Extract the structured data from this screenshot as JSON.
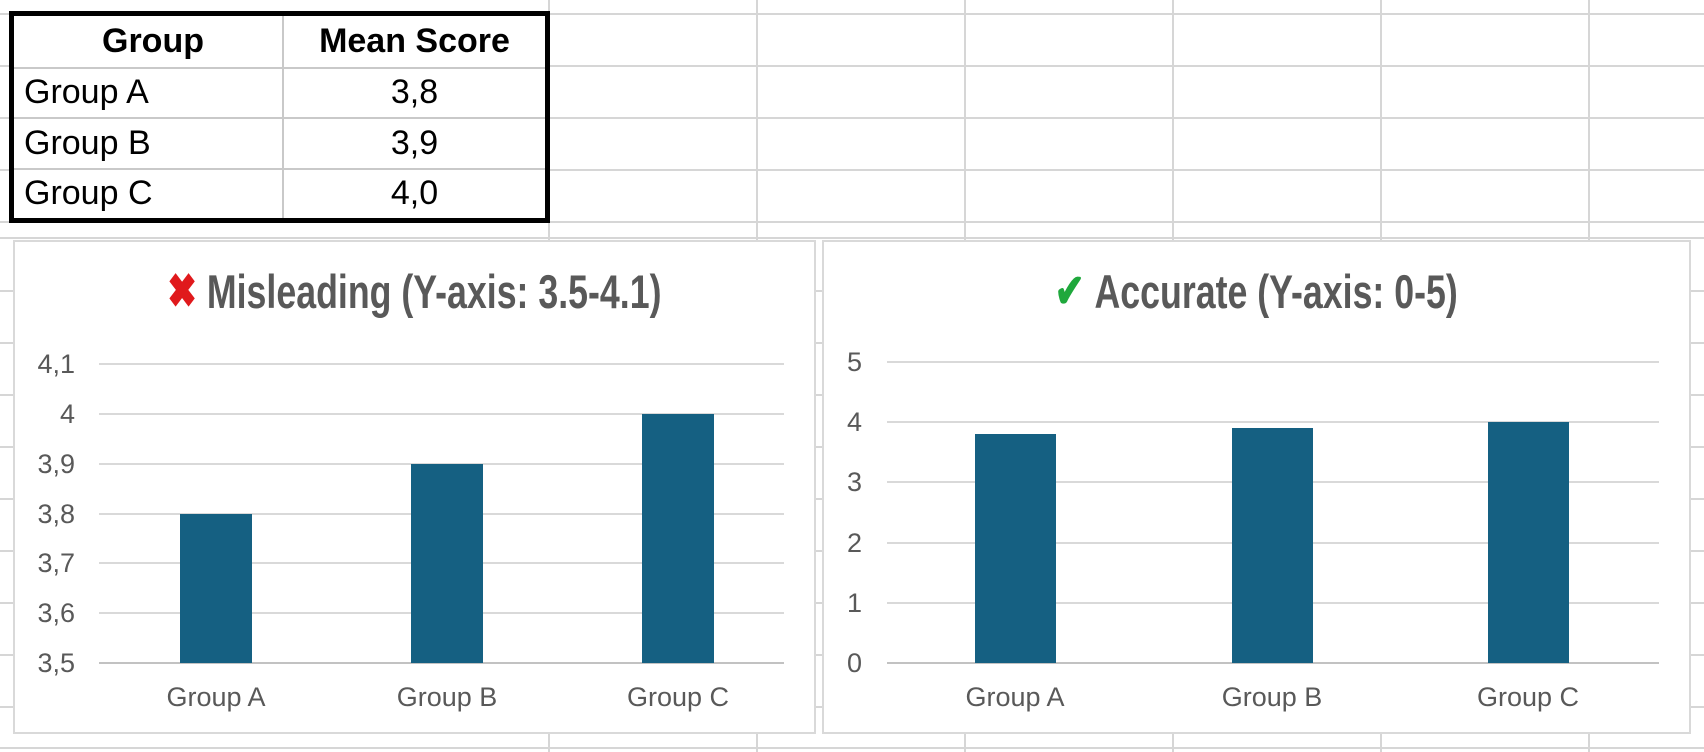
{
  "table": {
    "headers": [
      "Group",
      "Mean Score"
    ],
    "rows": [
      [
        "Group A",
        "3,8"
      ],
      [
        "Group B",
        "3,9"
      ],
      [
        "Group C",
        "4,0"
      ]
    ]
  },
  "chart_data": [
    {
      "type": "bar",
      "title": "Misleading (Y-axis: 3.5-4.1)",
      "title_icon": "✖",
      "icon_color": "#e0191c",
      "bar_color": "#156082",
      "categories": [
        "Group A",
        "Group B",
        "Group C"
      ],
      "values": [
        3.8,
        3.9,
        4.0
      ],
      "ylim": [
        3.5,
        4.1
      ],
      "yticks": [
        3.5,
        3.6,
        3.7,
        3.8,
        3.9,
        4.0,
        4.1
      ],
      "ytick_labels": [
        "3,5",
        "3,6",
        "3,7",
        "3,8",
        "3,9",
        "4",
        "4,1"
      ],
      "xlabel": "",
      "ylabel": "",
      "grid": true,
      "legend": "none"
    },
    {
      "type": "bar",
      "title": "Accurate (Y-axis: 0-5)",
      "title_icon": "✔",
      "icon_color": "#1fa83c",
      "bar_color": "#156082",
      "categories": [
        "Group A",
        "Group B",
        "Group C"
      ],
      "values": [
        3.8,
        3.9,
        4.0
      ],
      "ylim": [
        0,
        5
      ],
      "yticks": [
        0,
        1,
        2,
        3,
        4,
        5
      ],
      "ytick_labels": [
        "0",
        "1",
        "2",
        "3",
        "4",
        "5"
      ],
      "xlabel": "",
      "ylabel": "",
      "grid": true,
      "legend": "none"
    }
  ]
}
